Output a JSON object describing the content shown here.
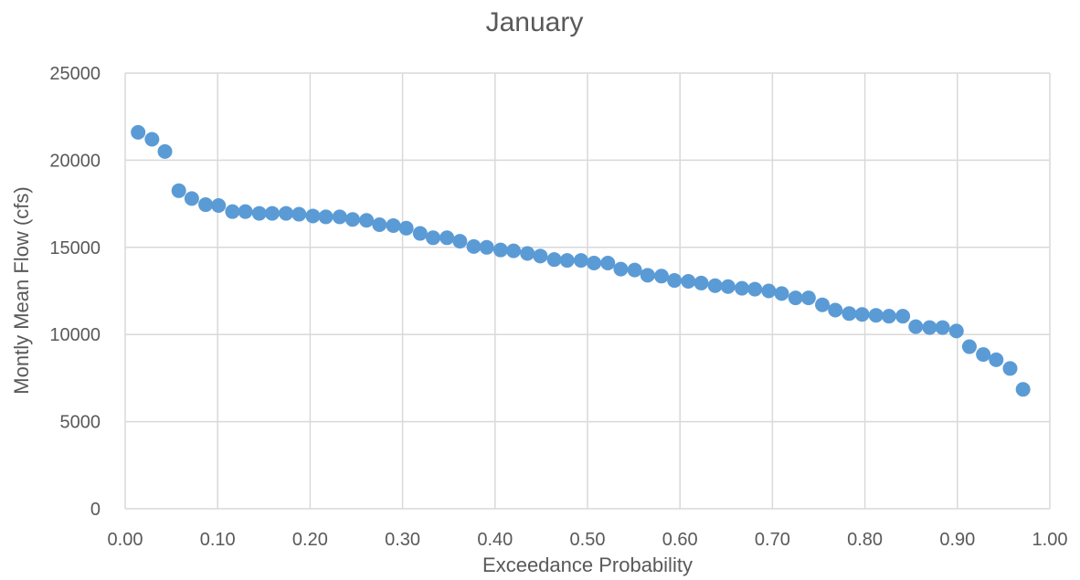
{
  "chart_data": {
    "type": "scatter",
    "title": "January",
    "xlabel": "Exceedance Probability",
    "ylabel": "Montly Mean Flow (cfs)",
    "xlim": [
      0.0,
      1.0
    ],
    "ylim": [
      0,
      25000
    ],
    "x_ticks": [
      "0.00",
      "0.10",
      "0.20",
      "0.30",
      "0.40",
      "0.50",
      "0.60",
      "0.70",
      "0.80",
      "0.90",
      "1.00"
    ],
    "y_ticks": [
      "0",
      "5000",
      "10000",
      "15000",
      "20000",
      "25000"
    ],
    "grid": true,
    "legend": "none",
    "marker_color": "#5b9bd5",
    "series": [
      {
        "points": [
          [
            0.014,
            21600
          ],
          [
            0.029,
            21200
          ],
          [
            0.043,
            20500
          ],
          [
            0.058,
            18250
          ],
          [
            0.072,
            17800
          ],
          [
            0.087,
            17450
          ],
          [
            0.101,
            17400
          ],
          [
            0.116,
            17050
          ],
          [
            0.13,
            17050
          ],
          [
            0.145,
            16950
          ],
          [
            0.159,
            16950
          ],
          [
            0.174,
            16950
          ],
          [
            0.188,
            16900
          ],
          [
            0.203,
            16800
          ],
          [
            0.217,
            16750
          ],
          [
            0.232,
            16750
          ],
          [
            0.246,
            16600
          ],
          [
            0.261,
            16550
          ],
          [
            0.275,
            16300
          ],
          [
            0.29,
            16250
          ],
          [
            0.304,
            16100
          ],
          [
            0.319,
            15800
          ],
          [
            0.333,
            15550
          ],
          [
            0.348,
            15550
          ],
          [
            0.362,
            15350
          ],
          [
            0.377,
            15050
          ],
          [
            0.391,
            15000
          ],
          [
            0.406,
            14850
          ],
          [
            0.42,
            14800
          ],
          [
            0.435,
            14650
          ],
          [
            0.449,
            14500
          ],
          [
            0.464,
            14300
          ],
          [
            0.478,
            14250
          ],
          [
            0.493,
            14250
          ],
          [
            0.507,
            14100
          ],
          [
            0.522,
            14100
          ],
          [
            0.536,
            13750
          ],
          [
            0.551,
            13700
          ],
          [
            0.565,
            13400
          ],
          [
            0.58,
            13350
          ],
          [
            0.594,
            13100
          ],
          [
            0.609,
            13050
          ],
          [
            0.623,
            12950
          ],
          [
            0.638,
            12800
          ],
          [
            0.652,
            12750
          ],
          [
            0.667,
            12650
          ],
          [
            0.681,
            12600
          ],
          [
            0.696,
            12500
          ],
          [
            0.71,
            12350
          ],
          [
            0.725,
            12100
          ],
          [
            0.739,
            12100
          ],
          [
            0.754,
            11700
          ],
          [
            0.768,
            11400
          ],
          [
            0.783,
            11200
          ],
          [
            0.797,
            11150
          ],
          [
            0.812,
            11100
          ],
          [
            0.826,
            11050
          ],
          [
            0.841,
            11050
          ],
          [
            0.855,
            10450
          ],
          [
            0.87,
            10400
          ],
          [
            0.884,
            10400
          ],
          [
            0.899,
            10200
          ],
          [
            0.913,
            9300
          ],
          [
            0.928,
            8850
          ],
          [
            0.942,
            8550
          ],
          [
            0.957,
            8050
          ],
          [
            0.971,
            6850
          ]
        ]
      }
    ]
  }
}
